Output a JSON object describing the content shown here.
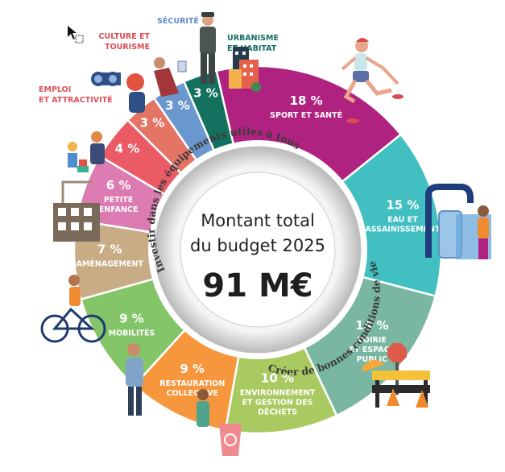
{
  "chart_data": {
    "type": "pie",
    "title": "",
    "center": {
      "line1": "Montant total",
      "line2": "du budget 2025",
      "total": "91 M€"
    },
    "ring_texts": {
      "left": "Investir dans les équipements utiles à tous",
      "right": "Créer de bonnes conditions de vie"
    },
    "slices": [
      {
        "name": "SPORT ET SANTÉ",
        "lines": [
          "SPORT ET SANTÉ"
        ],
        "value": 18,
        "label": "18 %",
        "color": "#b0227f",
        "label_inside": true
      },
      {
        "name": "EAU ET ASSAINISSEMENT",
        "lines": [
          "EAU ET",
          "ASSAINISSEMENT"
        ],
        "value": 15,
        "label": "15 %",
        "color": "#42bfc1",
        "label_inside": true
      },
      {
        "name": "VOIRIE ET ESPACE PUBLIC",
        "lines": [
          "VOIRIE",
          "ET ESPACE",
          "PUBLIC"
        ],
        "value": 14,
        "label": "14 %",
        "color": "#7ab7a2",
        "label_inside": true
      },
      {
        "name": "ENVIRONNEMENT ET GESTION DES DÉCHETS",
        "lines": [
          "ENVIRONNEMENT",
          "ET GESTION DES",
          "DÉCHETS"
        ],
        "value": 10,
        "label": "10 %",
        "color": "#a9ca60",
        "label_inside": true
      },
      {
        "name": "RESTAURATION COLLECTIVE",
        "lines": [
          "RESTAURATION",
          "COLLECTIVE"
        ],
        "value": 9,
        "label": "9 %",
        "color": "#f6963d",
        "label_inside": true
      },
      {
        "name": "MOBILITÉS",
        "lines": [
          "MOBILITÉS"
        ],
        "value": 9,
        "label": "9 %",
        "color": "#84c56a",
        "label_inside": true
      },
      {
        "name": "AMÉNAGEMENT",
        "lines": [
          "AMÉNAGEMENT"
        ],
        "value": 7,
        "label": "7 %",
        "color": "#c8ac85",
        "label_inside": true
      },
      {
        "name": "PETITE ENFANCE",
        "lines": [
          "PETITE",
          "ENFANCE"
        ],
        "value": 6,
        "label": "6 %",
        "color": "#db7bb1",
        "label_inside": true
      },
      {
        "name": "EMPLOI ET ATTRACTIVITÉ",
        "lines": [
          "EMPLOI",
          "ET ATTRACTIVITÉ"
        ],
        "value": 4,
        "label": "4 %",
        "color": "#eb5b66",
        "label_inside": false,
        "ext_color": "#e0505c"
      },
      {
        "name": "CULTURE ET TOURISME",
        "lines": [
          "CULTURE ET",
          "TOURISME"
        ],
        "value": 3,
        "label": "3 %",
        "color": "#e47565",
        "label_inside": false,
        "ext_color": "#d94c54"
      },
      {
        "name": "SÉCURITÉ",
        "lines": [
          "SÉCURITÉ"
        ],
        "value": 3,
        "label": "3 %",
        "color": "#6b97cf",
        "label_inside": false,
        "ext_color": "#5f8dca"
      },
      {
        "name": "URBANISME ET HABITAT",
        "lines": [
          "URBANISME",
          "ET HABITAT"
        ],
        "value": 3,
        "label": "3 %",
        "color": "#14705f",
        "label_inside": false,
        "ext_color": "#14705f"
      }
    ]
  }
}
